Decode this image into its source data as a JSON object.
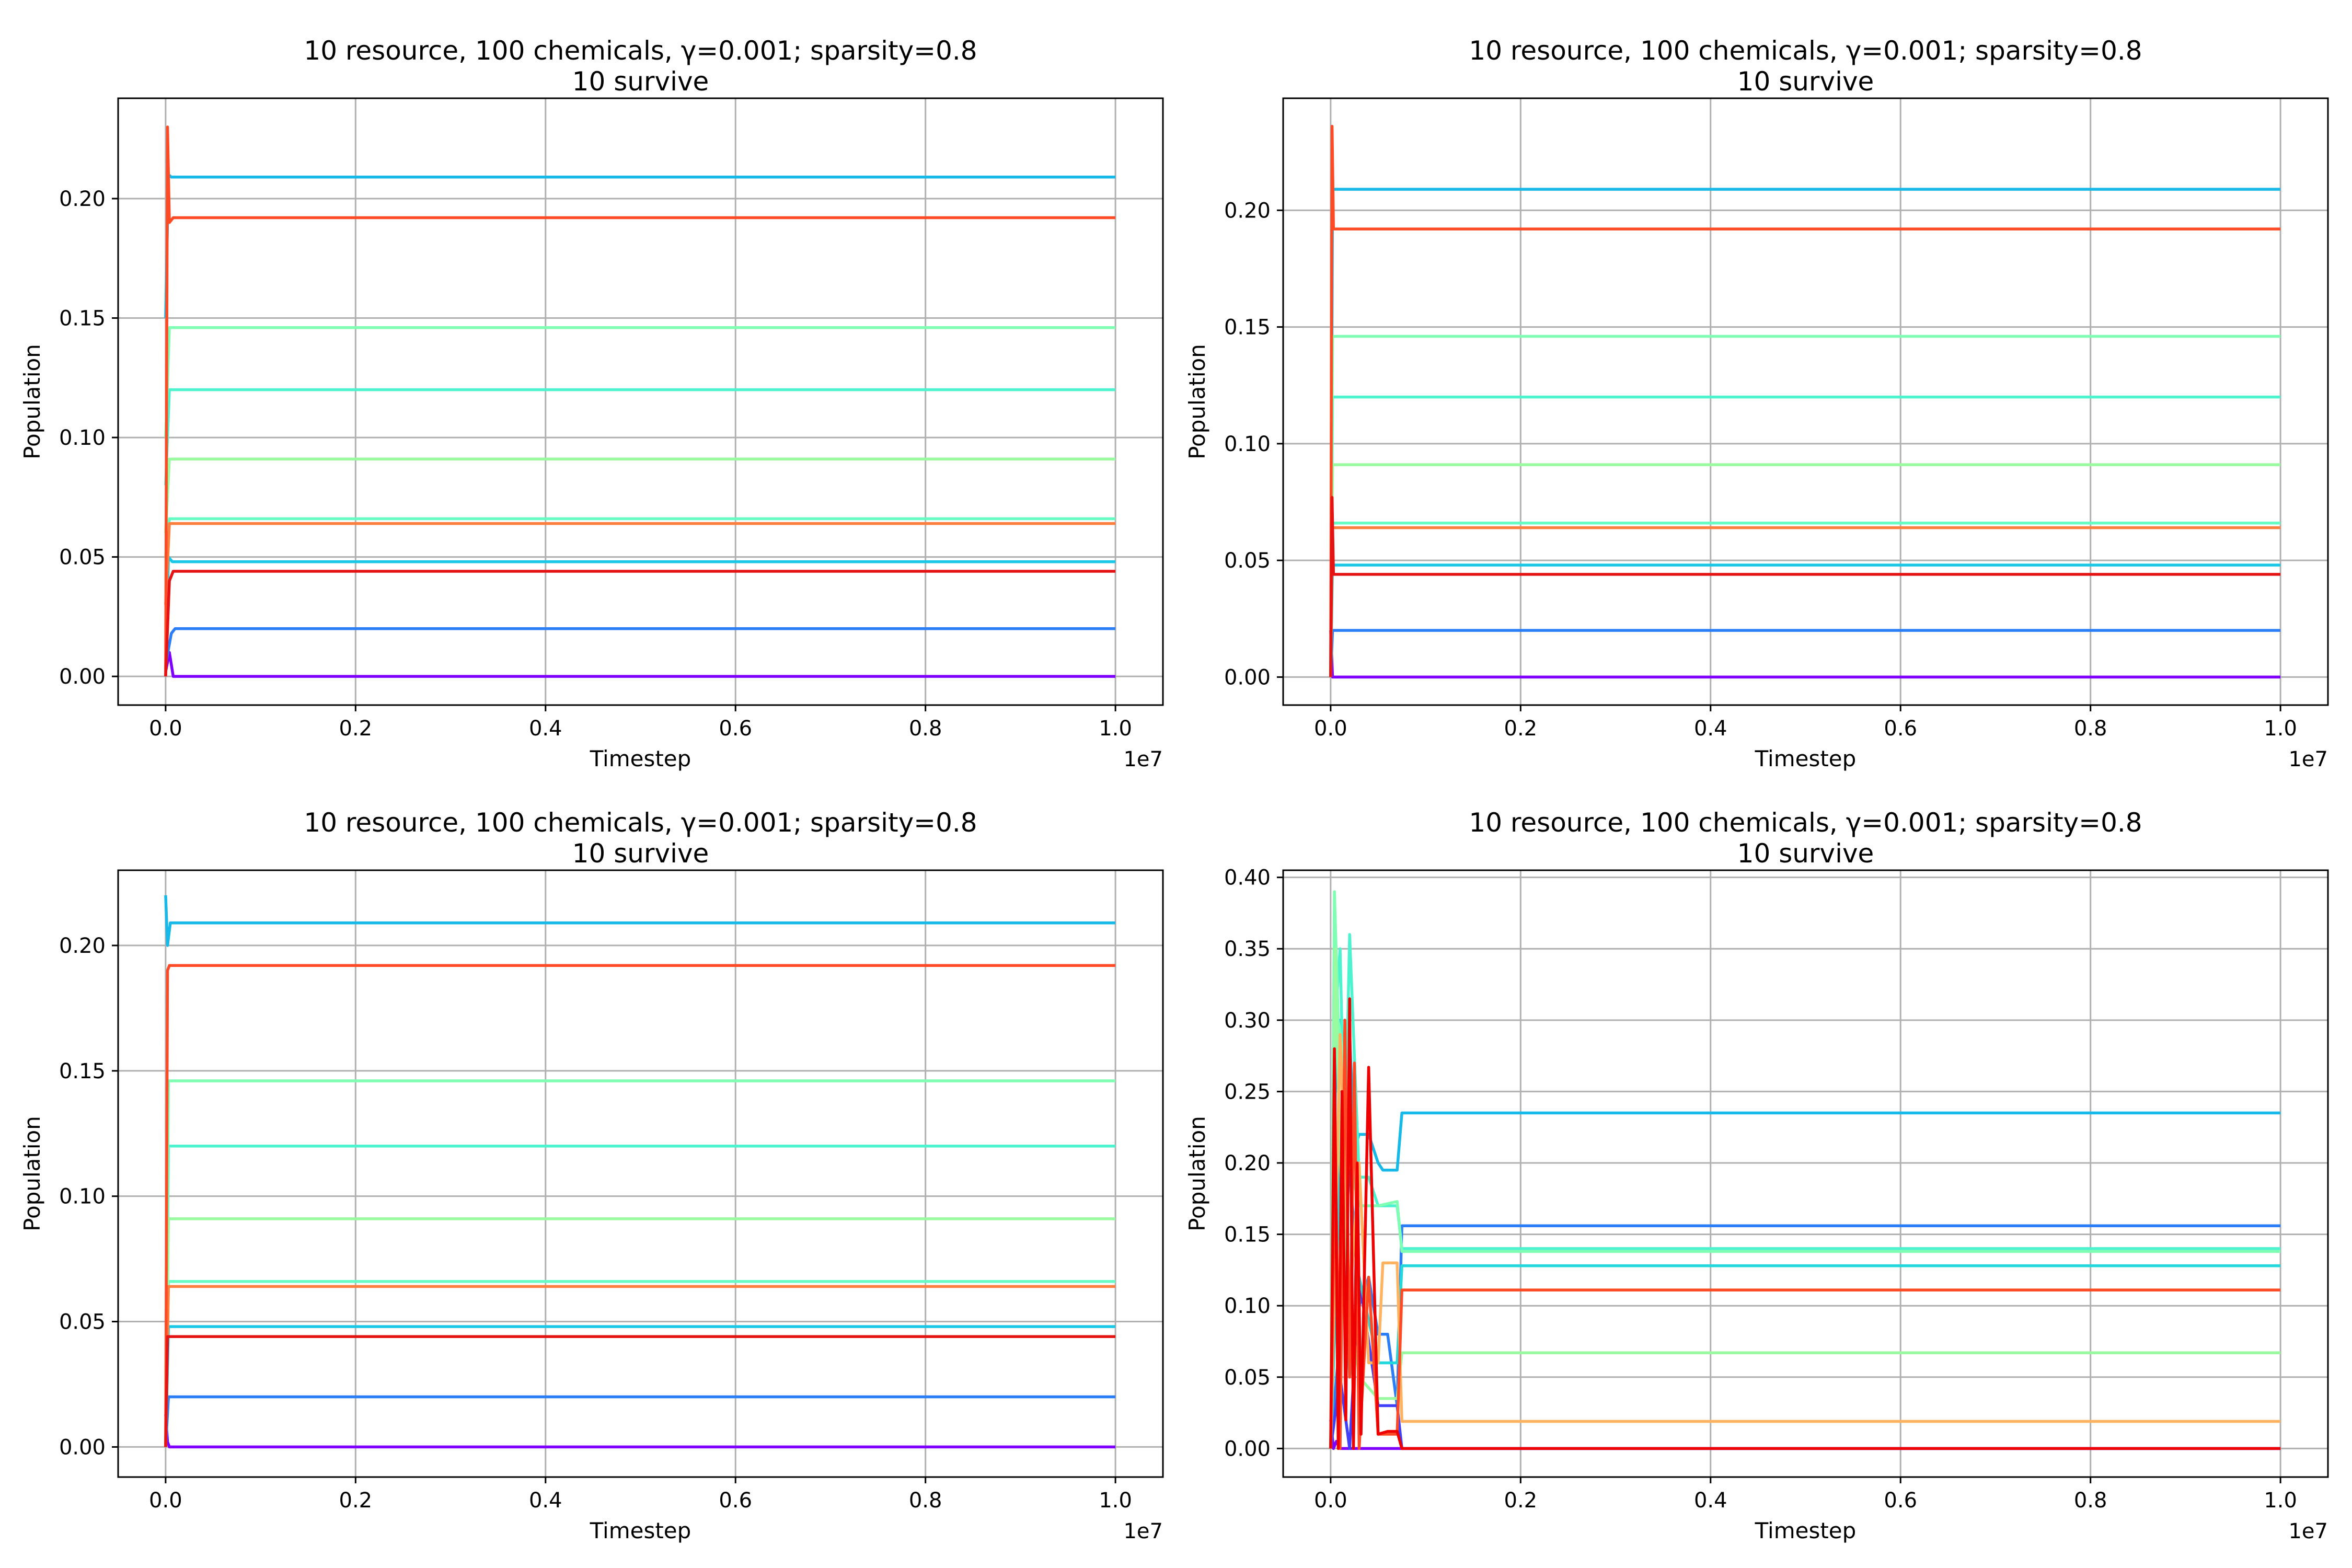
{
  "chart_data": [
    {
      "type": "line",
      "title": "10 resource, 100 chemicals, γ=0.001; sparsity=0.8",
      "subtitle": "10 survive",
      "xlabel": "Timestep",
      "ylabel": "Population",
      "x_offset_label": "1e7",
      "xlim": [
        -0.05,
        1.05
      ],
      "ylim": [
        -0.012,
        0.242
      ],
      "xticks": [
        0.0,
        0.2,
        0.4,
        0.6,
        0.8,
        1.0
      ],
      "xtick_labels": [
        "0.0",
        "0.2",
        "0.4",
        "0.6",
        "0.8",
        "1.0"
      ],
      "yticks": [
        0.0,
        0.05,
        0.1,
        0.15,
        0.2
      ],
      "ytick_labels": [
        "0.00",
        "0.05",
        "0.10",
        "0.15",
        "0.20"
      ],
      "grid": true,
      "series": [
        {
          "color": "#8000ff",
          "x": [
            0,
            0.004,
            0.008,
            1.0
          ],
          "y": [
            0.002,
            0.01,
            0.0,
            0.0
          ]
        },
        {
          "color": "#2c7ef7",
          "x": [
            0,
            0.006,
            0.01,
            1.0
          ],
          "y": [
            0.005,
            0.018,
            0.02,
            0.02
          ]
        },
        {
          "color": "#1ac7e6",
          "x": [
            0,
            0.003,
            0.007,
            1.0
          ],
          "y": [
            0.003,
            0.05,
            0.048,
            0.048
          ]
        },
        {
          "color": "#16b9e8",
          "x": [
            0,
            0.003,
            0.006,
            1.0
          ],
          "y": [
            0.15,
            0.21,
            0.209,
            0.209
          ]
        },
        {
          "color": "#4df3ce",
          "x": [
            0,
            0.004,
            0.008,
            1.0
          ],
          "y": [
            0.08,
            0.12,
            0.12,
            0.12
          ]
        },
        {
          "color": "#66fcc3",
          "x": [
            0,
            0.004,
            0.008,
            1.0
          ],
          "y": [
            0.05,
            0.066,
            0.066,
            0.066
          ]
        },
        {
          "color": "#80ffb4",
          "x": [
            0,
            0.004,
            0.008,
            1.0
          ],
          "y": [
            0.1,
            0.146,
            0.146,
            0.146
          ]
        },
        {
          "color": "#9afaa0",
          "x": [
            0,
            0.004,
            0.008,
            1.0
          ],
          "y": [
            0.06,
            0.091,
            0.091,
            0.091
          ]
        },
        {
          "color": "#ff7f3f",
          "x": [
            0,
            0.004,
            0.008,
            1.0
          ],
          "y": [
            0.03,
            0.064,
            0.064,
            0.064
          ]
        },
        {
          "color": "#ff4a26",
          "x": [
            0,
            0.002,
            0.004,
            0.008,
            1.0
          ],
          "y": [
            0.0,
            0.23,
            0.19,
            0.192,
            0.192
          ]
        },
        {
          "color": "#e41414",
          "x": [
            0,
            0.004,
            0.008,
            1.0
          ],
          "y": [
            0.0,
            0.04,
            0.044,
            0.044
          ]
        }
      ]
    },
    {
      "type": "line",
      "title": "10 resource, 100 chemicals, γ=0.001; sparsity=0.8",
      "subtitle": "10 survive",
      "xlabel": "Timestep",
      "ylabel": "Population",
      "x_offset_label": "1e7",
      "xlim": [
        -0.05,
        1.05
      ],
      "ylim": [
        -0.012,
        0.248
      ],
      "xticks": [
        0.0,
        0.2,
        0.4,
        0.6,
        0.8,
        1.0
      ],
      "xtick_labels": [
        "0.0",
        "0.2",
        "0.4",
        "0.6",
        "0.8",
        "1.0"
      ],
      "yticks": [
        0.0,
        0.05,
        0.1,
        0.15,
        0.2
      ],
      "ytick_labels": [
        "0.00",
        "0.05",
        "0.10",
        "0.15",
        "0.20"
      ],
      "grid": true,
      "series": [
        {
          "color": "#8000ff",
          "x": [
            0,
            0.002,
            0.004,
            1.0
          ],
          "y": [
            0.02,
            0.0,
            0.0,
            0.0
          ]
        },
        {
          "color": "#2c7ef7",
          "x": [
            0,
            0.002,
            0.004,
            1.0
          ],
          "y": [
            0.0,
            0.02,
            0.02,
            0.02
          ]
        },
        {
          "color": "#1ac7e6",
          "x": [
            0,
            0.002,
            0.004,
            1.0
          ],
          "y": [
            0.0,
            0.048,
            0.048,
            0.048
          ]
        },
        {
          "color": "#16b9e8",
          "x": [
            0,
            0.002,
            0.004,
            1.0
          ],
          "y": [
            0.0,
            0.209,
            0.209,
            0.209
          ]
        },
        {
          "color": "#4df3ce",
          "x": [
            0,
            0.002,
            0.004,
            1.0
          ],
          "y": [
            0.0,
            0.12,
            0.12,
            0.12
          ]
        },
        {
          "color": "#66fcc3",
          "x": [
            0,
            0.002,
            0.004,
            1.0
          ],
          "y": [
            0.0,
            0.066,
            0.066,
            0.066
          ]
        },
        {
          "color": "#80ffb4",
          "x": [
            0,
            0.002,
            0.004,
            1.0
          ],
          "y": [
            0.0,
            0.146,
            0.146,
            0.146
          ]
        },
        {
          "color": "#9afaa0",
          "x": [
            0,
            0.002,
            0.004,
            1.0
          ],
          "y": [
            0.0,
            0.091,
            0.091,
            0.091
          ]
        },
        {
          "color": "#ff7f3f",
          "x": [
            0,
            0.002,
            0.004,
            1.0
          ],
          "y": [
            0.0,
            0.064,
            0.064,
            0.064
          ]
        },
        {
          "color": "#ff4a26",
          "x": [
            0,
            0.0015,
            0.003,
            1.0
          ],
          "y": [
            0.0,
            0.236,
            0.192,
            0.192
          ]
        },
        {
          "color": "#e41414",
          "x": [
            0,
            0.0015,
            0.003,
            1.0
          ],
          "y": [
            0.0,
            0.077,
            0.044,
            0.044
          ]
        }
      ]
    },
    {
      "type": "line",
      "title": "10 resource, 100 chemicals, γ=0.001; sparsity=0.8",
      "subtitle": "10 survive",
      "xlabel": "Timestep",
      "ylabel": "Population",
      "x_offset_label": "1e7",
      "xlim": [
        -0.05,
        1.05
      ],
      "ylim": [
        -0.012,
        0.23
      ],
      "xticks": [
        0.0,
        0.2,
        0.4,
        0.6,
        0.8,
        1.0
      ],
      "xtick_labels": [
        "0.0",
        "0.2",
        "0.4",
        "0.6",
        "0.8",
        "1.0"
      ],
      "yticks": [
        0.0,
        0.05,
        0.1,
        0.15,
        0.2
      ],
      "ytick_labels": [
        "0.00",
        "0.05",
        "0.10",
        "0.15",
        "0.20"
      ],
      "grid": true,
      "series": [
        {
          "color": "#8000ff",
          "x": [
            0,
            0.002,
            0.004,
            1.0
          ],
          "y": [
            0.013,
            0.002,
            0.0,
            0.0
          ]
        },
        {
          "color": "#2c7ef7",
          "x": [
            0,
            0.003,
            0.006,
            1.0
          ],
          "y": [
            0.0,
            0.02,
            0.02,
            0.02
          ]
        },
        {
          "color": "#1ac7e6",
          "x": [
            0,
            0.003,
            0.006,
            1.0
          ],
          "y": [
            0.0,
            0.048,
            0.048,
            0.048
          ]
        },
        {
          "color": "#16b9e8",
          "x": [
            0,
            0.002,
            0.005,
            1.0
          ],
          "y": [
            0.22,
            0.2,
            0.209,
            0.209
          ]
        },
        {
          "color": "#4df3ce",
          "x": [
            0,
            0.003,
            0.006,
            1.0
          ],
          "y": [
            0.0,
            0.12,
            0.12,
            0.12
          ]
        },
        {
          "color": "#66fcc3",
          "x": [
            0,
            0.003,
            0.006,
            1.0
          ],
          "y": [
            0.0,
            0.066,
            0.066,
            0.066
          ]
        },
        {
          "color": "#80ffb4",
          "x": [
            0,
            0.003,
            0.006,
            1.0
          ],
          "y": [
            0.0,
            0.146,
            0.146,
            0.146
          ]
        },
        {
          "color": "#9afaa0",
          "x": [
            0,
            0.003,
            0.006,
            1.0
          ],
          "y": [
            0.0,
            0.091,
            0.091,
            0.091
          ]
        },
        {
          "color": "#ff7f3f",
          "x": [
            0,
            0.003,
            0.006,
            1.0
          ],
          "y": [
            0.0,
            0.064,
            0.064,
            0.064
          ]
        },
        {
          "color": "#ff4a26",
          "x": [
            0,
            0.002,
            0.004,
            1.0
          ],
          "y": [
            0.0,
            0.19,
            0.192,
            0.192
          ]
        },
        {
          "color": "#e41414",
          "x": [
            0,
            0.002,
            0.004,
            1.0
          ],
          "y": [
            0.0,
            0.044,
            0.044,
            0.044
          ]
        }
      ]
    },
    {
      "type": "line",
      "title": "10 resource, 100 chemicals, γ=0.001; sparsity=0.8",
      "subtitle": "10 survive",
      "xlabel": "Timestep",
      "ylabel": "Population",
      "x_offset_label": "1e7",
      "xlim": [
        -0.05,
        1.05
      ],
      "ylim": [
        -0.02,
        0.405
      ],
      "xticks": [
        0.0,
        0.2,
        0.4,
        0.6,
        0.8,
        1.0
      ],
      "xtick_labels": [
        "0.0",
        "0.2",
        "0.4",
        "0.6",
        "0.8",
        "1.0"
      ],
      "yticks": [
        0.0,
        0.05,
        0.1,
        0.15,
        0.2,
        0.25,
        0.3,
        0.35,
        0.4
      ],
      "ytick_labels": [
        "0.00",
        "0.05",
        "0.10",
        "0.15",
        "0.20",
        "0.25",
        "0.30",
        "0.35",
        "0.40"
      ],
      "grid": true,
      "series": [
        {
          "color": "#8000ff",
          "x": [
            0,
            0.003,
            0.006,
            0.01,
            0.015,
            0.02,
            1.0
          ],
          "y": [
            0.02,
            0.0,
            0.005,
            0.0,
            0.0,
            0.0,
            0.0
          ]
        },
        {
          "color": "#2c7ef7",
          "x": [
            0,
            0.01,
            0.02,
            0.03,
            0.04,
            0.05,
            0.06,
            0.07,
            0.075,
            1.0
          ],
          "y": [
            0.0,
            0.08,
            0.2,
            0.1,
            0.12,
            0.08,
            0.08,
            0.03,
            0.156,
            0.156
          ]
        },
        {
          "color": "#4040f8",
          "x": [
            0,
            0.01,
            0.02,
            0.03,
            0.05,
            0.07,
            0.075,
            1.0
          ],
          "y": [
            0.0,
            0.05,
            0.0,
            0.12,
            0.03,
            0.03,
            0.0,
            0.0
          ]
        },
        {
          "color": "#16b9e8",
          "x": [
            0,
            0.005,
            0.01,
            0.015,
            0.02,
            0.025,
            0.03,
            0.04,
            0.05,
            0.055,
            0.07,
            0.075,
            1.0
          ],
          "y": [
            0.0,
            0.25,
            0.3,
            0.24,
            0.29,
            0.21,
            0.22,
            0.22,
            0.2,
            0.195,
            0.195,
            0.235,
            0.235
          ]
        },
        {
          "color": "#22d8dc",
          "x": [
            0,
            0.01,
            0.02,
            0.03,
            0.05,
            0.055,
            0.07,
            0.075,
            1.0
          ],
          "y": [
            0.0,
            0.2,
            0.05,
            0.12,
            0.06,
            0.06,
            0.06,
            0.128,
            0.128
          ]
        },
        {
          "color": "#4df3ce",
          "x": [
            0,
            0.005,
            0.01,
            0.015,
            0.02,
            0.03,
            0.04,
            0.05,
            0.07,
            0.075,
            1.0
          ],
          "y": [
            0.0,
            0.3,
            0.35,
            0.2,
            0.36,
            0.19,
            0.19,
            0.17,
            0.17,
            0.14,
            0.14
          ]
        },
        {
          "color": "#80ffb4",
          "x": [
            0,
            0.004,
            0.008,
            0.012,
            0.02,
            0.03,
            0.05,
            0.07,
            0.075,
            1.0
          ],
          "y": [
            0.0,
            0.39,
            0.3,
            0.28,
            0.2,
            0.17,
            0.17,
            0.173,
            0.138,
            0.138
          ]
        },
        {
          "color": "#9afaa0",
          "x": [
            0,
            0.005,
            0.01,
            0.02,
            0.03,
            0.05,
            0.07,
            0.075,
            1.0
          ],
          "y": [
            0.0,
            0.35,
            0.2,
            0.1,
            0.05,
            0.035,
            0.035,
            0.067,
            0.067
          ]
        },
        {
          "color": "#ffb360",
          "x": [
            0,
            0.01,
            0.02,
            0.03,
            0.04,
            0.05,
            0.055,
            0.07,
            0.075,
            1.0
          ],
          "y": [
            0.0,
            0.29,
            0.1,
            0.2,
            0.06,
            0.06,
            0.13,
            0.13,
            0.019,
            0.019
          ]
        },
        {
          "color": "#ff4a26",
          "x": [
            0,
            0.005,
            0.01,
            0.015,
            0.02,
            0.025,
            0.03,
            0.04,
            0.05,
            0.07,
            0.075,
            1.0
          ],
          "y": [
            0.0,
            0.21,
            0.0,
            0.3,
            0.05,
            0.27,
            0.0,
            0.12,
            0.01,
            0.01,
            0.111,
            0.111
          ]
        },
        {
          "color": "#ee0000",
          "x": [
            0,
            0.004,
            0.008,
            0.012,
            0.016,
            0.02,
            0.024,
            0.028,
            0.032,
            0.04,
            0.05,
            0.06,
            0.07,
            0.075,
            1.0
          ],
          "y": [
            0.0,
            0.28,
            0.0,
            0.25,
            0.02,
            0.315,
            0.0,
            0.2,
            0.01,
            0.267,
            0.01,
            0.012,
            0.012,
            0.0,
            0.0
          ]
        }
      ]
    }
  ]
}
